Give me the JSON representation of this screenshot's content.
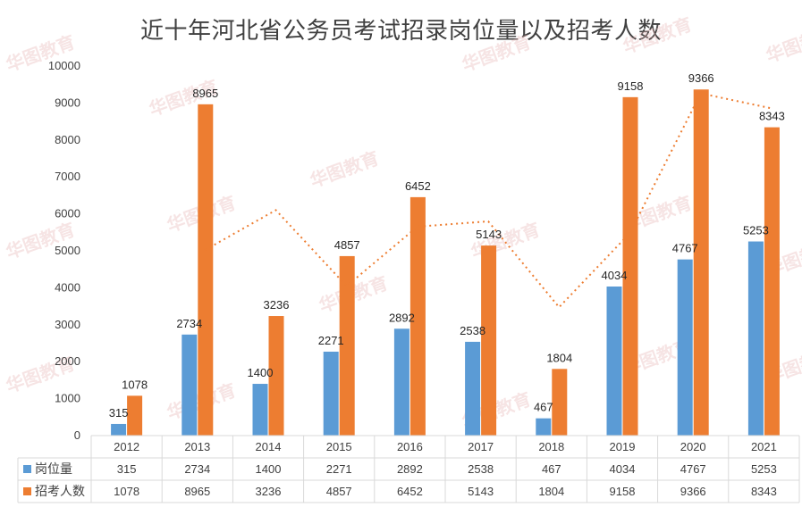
{
  "chart_data": {
    "type": "bar",
    "title": "近十年河北省公务员考试招录岗位量以及招考人数",
    "categories": [
      "2012",
      "2013",
      "2014",
      "2015",
      "2016",
      "2017",
      "2018",
      "2019",
      "2020",
      "2021"
    ],
    "series": [
      {
        "name": "岗位量",
        "color": "#5B9BD5",
        "values": [
          315,
          2734,
          1400,
          2271,
          2892,
          2538,
          467,
          4034,
          4767,
          5253
        ]
      },
      {
        "name": "招考人数",
        "color": "#ED7D31",
        "values": [
          1078,
          8965,
          3236,
          4857,
          6452,
          5143,
          1804,
          9158,
          9366,
          8343
        ]
      }
    ],
    "trendline": {
      "series": "招考人数",
      "style": "dotted",
      "color": "#ED7D31"
    },
    "ylim": [
      0,
      10000
    ],
    "yticks": [
      0,
      1000,
      2000,
      3000,
      4000,
      5000,
      6000,
      7000,
      8000,
      9000,
      10000
    ],
    "data_table": true,
    "grid": false
  },
  "watermark": "华图教育"
}
